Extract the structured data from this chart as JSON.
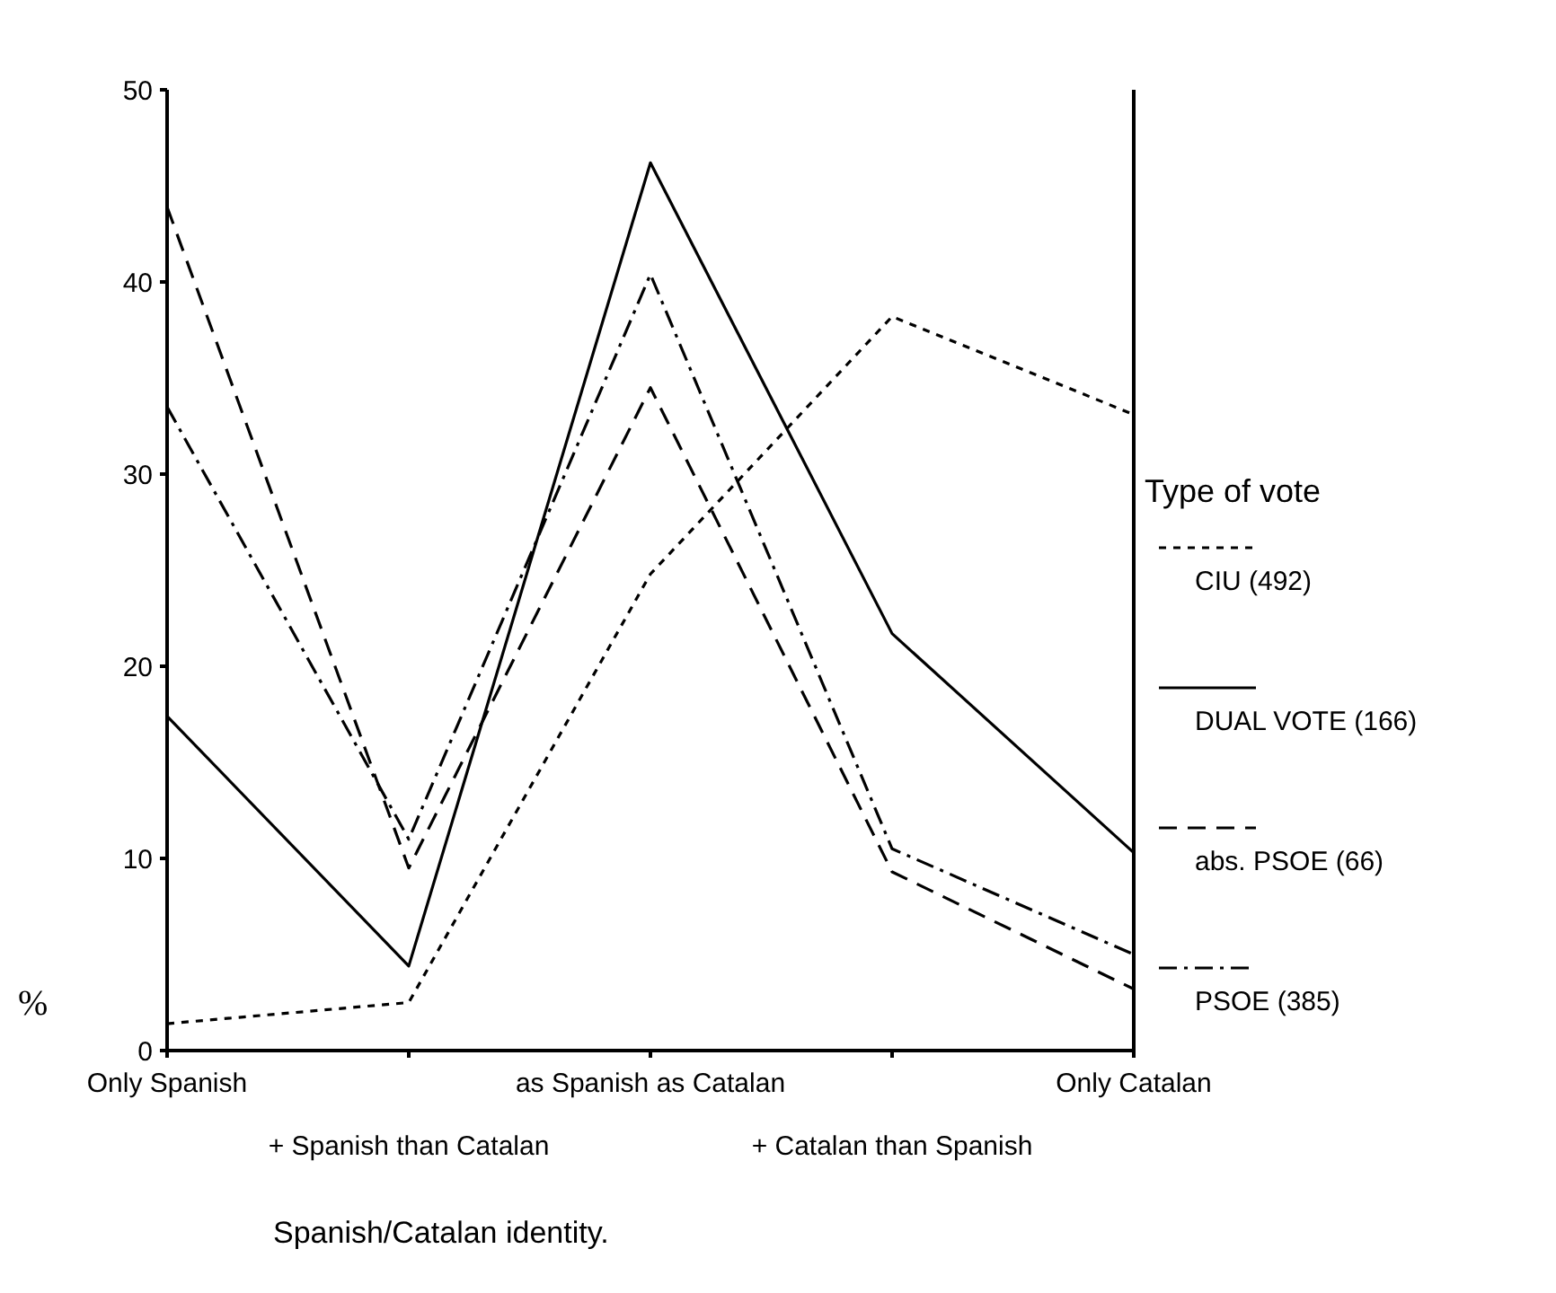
{
  "chart_data": {
    "type": "line",
    "xlabel": "Spanish/Catalan identity.",
    "ylabel": "%",
    "legend_title": "Type of vote",
    "legend": "right",
    "grid": false,
    "categories": [
      "Only Spanish",
      "+ Spanish than Catalan",
      "as Spanish as Catalan",
      "+ Catalan than Spanish",
      "Only Catalan"
    ],
    "ylim": [
      0,
      50
    ],
    "yticks": [
      0,
      10,
      20,
      30,
      40,
      50
    ],
    "series": [
      {
        "name": "CIU (492)",
        "color": "#000000",
        "line_style": "dotted",
        "values": [
          1.4,
          2.5,
          24.8,
          38.2,
          33.1
        ]
      },
      {
        "name": "DUAL VOTE (166)",
        "color": "#000000",
        "line_style": "solid",
        "values": [
          17.4,
          4.4,
          46.2,
          21.7,
          10.3
        ]
      },
      {
        "name": "abs. PSOE (66)",
        "color": "#000000",
        "line_style": "dashed",
        "values": [
          43.9,
          9.5,
          34.5,
          9.3,
          3.2
        ]
      },
      {
        "name": "PSOE (385)",
        "color": "#000000",
        "line_style": "dashdot",
        "values": [
          33.5,
          11.0,
          40.4,
          10.5,
          5.0
        ]
      }
    ]
  }
}
